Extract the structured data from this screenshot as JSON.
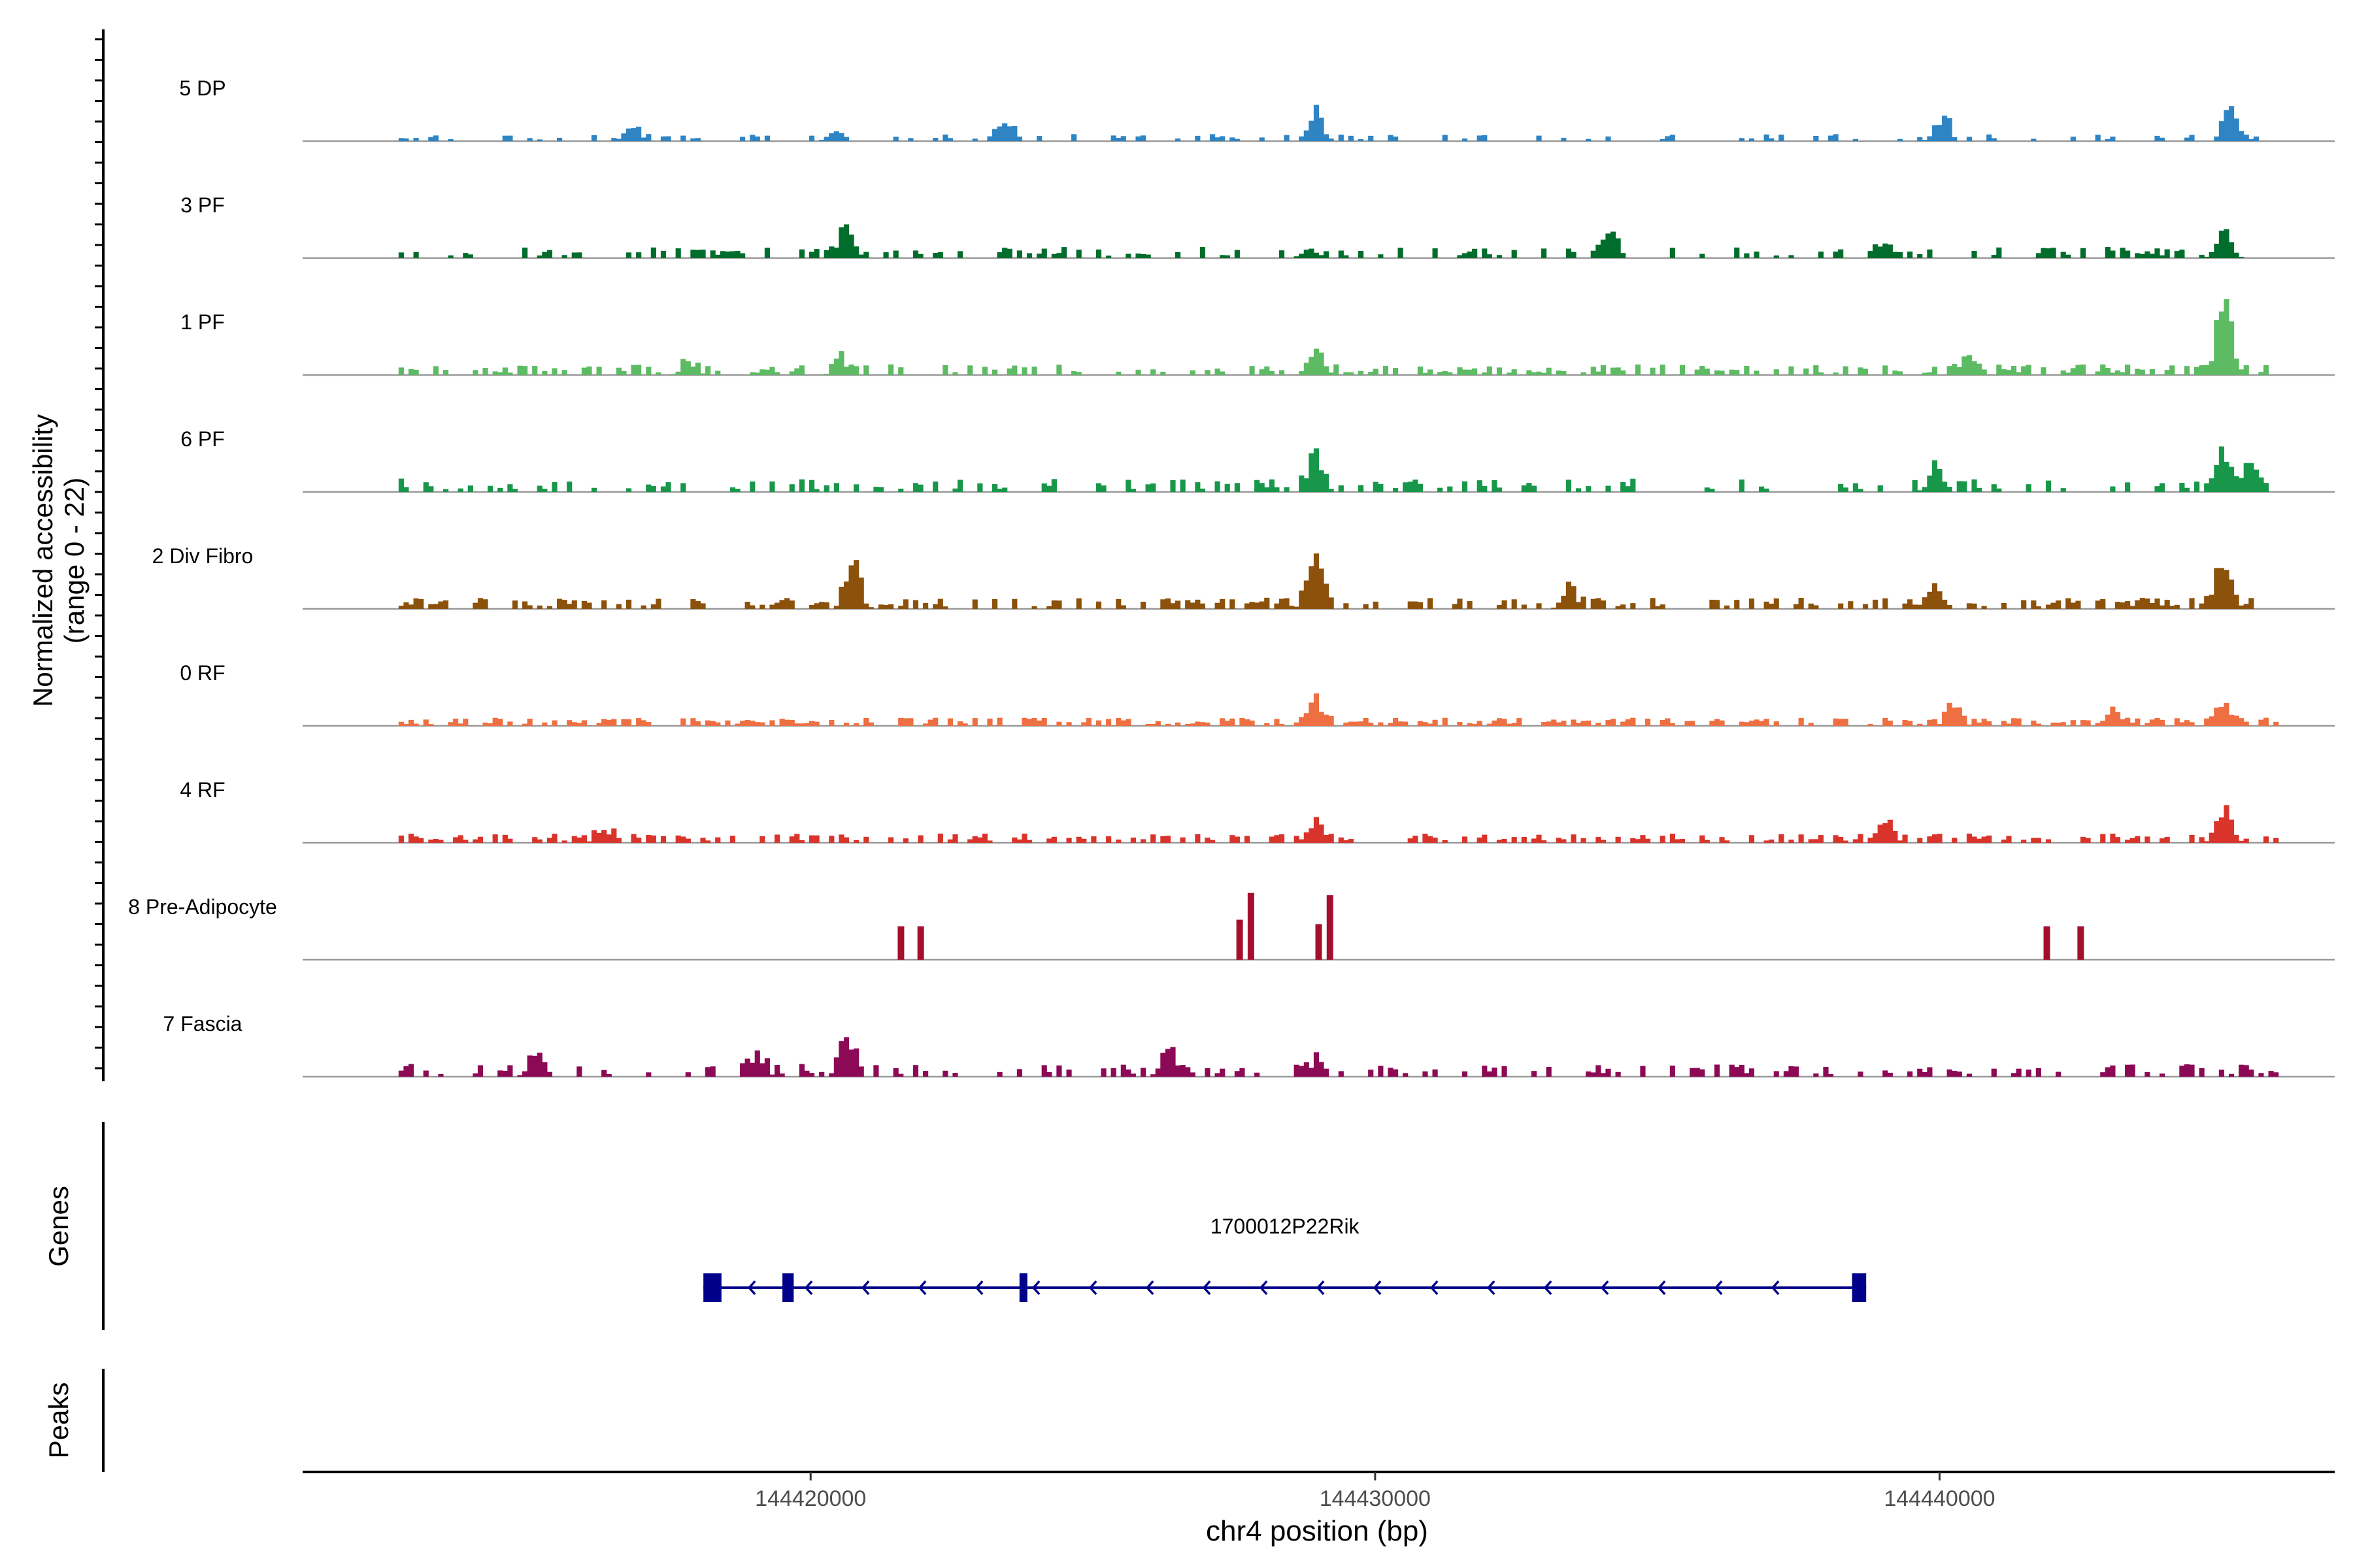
{
  "chart_data": {
    "type": "area",
    "title": "",
    "ylabel_line1": "Normalized accessibility",
    "ylabel_line2": "(range 0 - 22)",
    "xlabel": "chr4 position (bp)",
    "ylim": [
      0,
      22
    ],
    "xlim": [
      144411000,
      144447000
    ],
    "region_start": 144412700,
    "region_end": 144446000,
    "x_ticks": [
      144420000,
      144430000,
      144440000
    ],
    "x_tick_labels": [
      "144420000",
      "144430000",
      "144440000"
    ],
    "tracks": [
      {
        "name": "5 DP",
        "color": "#2F84C3",
        "seed": 11,
        "density": 0.3,
        "base": 1.2,
        "spread": 1.0,
        "peaks": [
          [
            144416800,
            3.0
          ],
          [
            144420400,
            2.6
          ],
          [
            144423400,
            4.5
          ],
          [
            144428900,
            6.0
          ],
          [
            144440000,
            5.0
          ],
          [
            144445100,
            6.5
          ]
        ]
      },
      {
        "name": "3 PF",
        "color": "#006D2C",
        "seed": 23,
        "density": 0.36,
        "base": 1.8,
        "spread": 1.1,
        "peaks": [
          [
            144420600,
            7.0
          ],
          [
            144428800,
            2.2
          ],
          [
            144434100,
            6.0
          ],
          [
            144439000,
            3.5
          ],
          [
            144445000,
            5.5
          ]
        ]
      },
      {
        "name": "1 PF",
        "color": "#5DBB63",
        "seed": 37,
        "density": 0.5,
        "base": 1.6,
        "spread": 1.2,
        "peaks": [
          [
            144417800,
            2.5
          ],
          [
            144420500,
            3.0
          ],
          [
            144428900,
            6.0
          ],
          [
            144440500,
            3.0
          ],
          [
            144445000,
            19.0
          ]
        ]
      },
      {
        "name": "6 PF",
        "color": "#18974A",
        "seed": 41,
        "density": 0.34,
        "base": 2.0,
        "spread": 1.2,
        "peaks": [
          [
            144428900,
            8.0
          ],
          [
            144439900,
            5.0
          ],
          [
            144445000,
            9.0
          ],
          [
            144445500,
            7.0
          ]
        ]
      },
      {
        "name": "2 Div Fibro",
        "color": "#8C510A",
        "seed": 53,
        "density": 0.46,
        "base": 1.8,
        "spread": 1.1,
        "peaks": [
          [
            144420700,
            9.0
          ],
          [
            144428900,
            15.0
          ],
          [
            144433400,
            4.0
          ],
          [
            144439900,
            5.0
          ],
          [
            144445000,
            11.0
          ]
        ]
      },
      {
        "name": "0 RF",
        "color": "#EE6F41",
        "seed": 67,
        "density": 0.6,
        "base": 1.4,
        "spread": 1.0,
        "peaks": [
          [
            144428900,
            5.5
          ],
          [
            144440200,
            3.5
          ],
          [
            144443000,
            3.0
          ],
          [
            144445000,
            4.5
          ]
        ]
      },
      {
        "name": "4 RF",
        "color": "#D9342B",
        "seed": 71,
        "density": 0.46,
        "base": 1.6,
        "spread": 1.0,
        "peaks": [
          [
            144416300,
            3.0
          ],
          [
            144428900,
            5.0
          ],
          [
            144439000,
            5.0
          ],
          [
            144445000,
            7.5
          ]
        ]
      },
      {
        "name": "8 Pre-Adipocyte",
        "color": "#A50F2E",
        "bars": [
          [
            144421600,
            7.5
          ],
          [
            144421950,
            7.5
          ],
          [
            144427600,
            9.0
          ],
          [
            144427800,
            15.0
          ],
          [
            144429000,
            8.0
          ],
          [
            144429200,
            14.5
          ],
          [
            144441900,
            7.5
          ],
          [
            144442500,
            7.5
          ]
        ]
      },
      {
        "name": "7 Fascia",
        "color": "#8C0A55",
        "seed": 89,
        "density": 0.4,
        "base": 1.9,
        "spread": 1.2,
        "peaks": [
          [
            144415100,
            5.0
          ],
          [
            144419000,
            5.0
          ],
          [
            144420600,
            8.5
          ],
          [
            144426300,
            5.0
          ],
          [
            144428900,
            3.0
          ]
        ]
      }
    ],
    "genes_label": "Genes",
    "peaks_label": "Peaks",
    "gene": {
      "name": "1700012P22Rik",
      "start": 144418100,
      "end": 144438700,
      "strand": "-",
      "color": "#00008B",
      "exons": [
        [
          144418100,
          144418420
        ],
        [
          144419500,
          144419700
        ],
        [
          144423700,
          144423800
        ],
        [
          144438450,
          144438700
        ]
      ]
    }
  }
}
